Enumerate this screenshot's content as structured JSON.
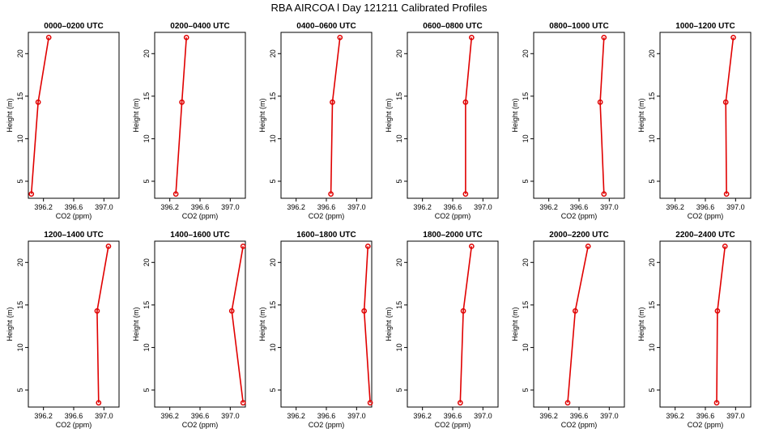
{
  "figure": {
    "title": "RBA AIRCOA l  Day 121211  Calibrated Profiles"
  },
  "style": {
    "line_color": "#e00000",
    "point_color": "#e00000",
    "axis_color": "#000000"
  },
  "chart_data": [
    {
      "type": "line",
      "title": "0000–0200 UTC",
      "xlabel": "CO2 (ppm)",
      "ylabel": "Height (m)",
      "xlim": [
        396.0,
        397.2
      ],
      "ylim": [
        3,
        22.5
      ],
      "xticks": [
        "396.2",
        "396.6",
        "397.0"
      ],
      "yticks": [
        "5",
        "10",
        "15",
        "20"
      ],
      "series": [
        {
          "x": [
            396.04,
            396.13,
            396.27
          ],
          "y": [
            3.5,
            14.3,
            21.9
          ]
        }
      ]
    },
    {
      "type": "line",
      "title": "0200–0400 UTC",
      "xlabel": "CO2 (ppm)",
      "ylabel": "Height (m)",
      "xlim": [
        396.0,
        397.2
      ],
      "ylim": [
        3,
        22.5
      ],
      "xticks": [
        "396.2",
        "396.6",
        "397.0"
      ],
      "yticks": [
        "5",
        "10",
        "15",
        "20"
      ],
      "series": [
        {
          "x": [
            396.28,
            396.36,
            396.42
          ],
          "y": [
            3.5,
            14.3,
            21.9
          ]
        }
      ]
    },
    {
      "type": "line",
      "title": "0400–0600 UTC",
      "xlabel": "CO2 (ppm)",
      "ylabel": "Height (m)",
      "xlim": [
        396.0,
        397.2
      ],
      "ylim": [
        3,
        22.5
      ],
      "xticks": [
        "396.2",
        "396.6",
        "397.0"
      ],
      "yticks": [
        "5",
        "10",
        "15",
        "20"
      ],
      "series": [
        {
          "x": [
            396.66,
            396.68,
            396.78
          ],
          "y": [
            3.5,
            14.3,
            21.9
          ]
        }
      ]
    },
    {
      "type": "line",
      "title": "0600–0800 UTC",
      "xlabel": "CO2 (ppm)",
      "ylabel": "Height (m)",
      "xlim": [
        396.0,
        397.2
      ],
      "ylim": [
        3,
        22.5
      ],
      "xticks": [
        "396.2",
        "396.6",
        "397.0"
      ],
      "yticks": [
        "5",
        "10",
        "15",
        "20"
      ],
      "series": [
        {
          "x": [
            396.77,
            396.77,
            396.85
          ],
          "y": [
            3.5,
            14.3,
            21.9
          ]
        }
      ]
    },
    {
      "type": "line",
      "title": "0800–1000 UTC",
      "xlabel": "CO2 (ppm)",
      "ylabel": "Height (m)",
      "xlim": [
        396.0,
        397.2
      ],
      "ylim": [
        3,
        22.5
      ],
      "xticks": [
        "396.2",
        "396.6",
        "397.0"
      ],
      "yticks": [
        "5",
        "10",
        "15",
        "20"
      ],
      "series": [
        {
          "x": [
            396.93,
            396.88,
            396.93
          ],
          "y": [
            3.5,
            14.3,
            21.9
          ]
        }
      ]
    },
    {
      "type": "line",
      "title": "1000–1200 UTC",
      "xlabel": "CO2 (ppm)",
      "ylabel": "Height (m)",
      "xlim": [
        396.0,
        397.2
      ],
      "ylim": [
        3,
        22.5
      ],
      "xticks": [
        "396.2",
        "396.6",
        "397.0"
      ],
      "yticks": [
        "5",
        "10",
        "15",
        "20"
      ],
      "series": [
        {
          "x": [
            396.88,
            396.87,
            396.97
          ],
          "y": [
            3.5,
            14.3,
            21.9
          ]
        }
      ]
    },
    {
      "type": "line",
      "title": "1200–1400 UTC",
      "xlabel": "CO2 (ppm)",
      "ylabel": "Height (m)",
      "xlim": [
        396.0,
        397.2
      ],
      "ylim": [
        3,
        22.5
      ],
      "xticks": [
        "396.2",
        "396.6",
        "397.0"
      ],
      "yticks": [
        "5",
        "10",
        "15",
        "20"
      ],
      "series": [
        {
          "x": [
            396.93,
            396.91,
            397.06
          ],
          "y": [
            3.5,
            14.3,
            21.9
          ]
        }
      ]
    },
    {
      "type": "line",
      "title": "1400–1600 UTC",
      "xlabel": "CO2 (ppm)",
      "ylabel": "Height (m)",
      "xlim": [
        396.0,
        397.2
      ],
      "ylim": [
        3,
        22.5
      ],
      "xticks": [
        "396.2",
        "396.6",
        "397.0"
      ],
      "yticks": [
        "5",
        "10",
        "15",
        "20"
      ],
      "series": [
        {
          "x": [
            397.17,
            397.02,
            397.17
          ],
          "y": [
            3.5,
            14.3,
            21.9
          ]
        }
      ]
    },
    {
      "type": "line",
      "title": "1600–1800 UTC",
      "xlabel": "CO2 (ppm)",
      "ylabel": "Height (m)",
      "xlim": [
        396.0,
        397.2
      ],
      "ylim": [
        3,
        22.5
      ],
      "xticks": [
        "396.2",
        "396.6",
        "397.0"
      ],
      "yticks": [
        "5",
        "10",
        "15",
        "20"
      ],
      "series": [
        {
          "x": [
            397.18,
            397.1,
            397.15
          ],
          "y": [
            3.5,
            14.3,
            21.9
          ]
        }
      ]
    },
    {
      "type": "line",
      "title": "1800–2000 UTC",
      "xlabel": "CO2 (ppm)",
      "ylabel": "Height (m)",
      "xlim": [
        396.0,
        397.2
      ],
      "ylim": [
        3,
        22.5
      ],
      "xticks": [
        "396.2",
        "396.6",
        "397.0"
      ],
      "yticks": [
        "5",
        "10",
        "15",
        "20"
      ],
      "series": [
        {
          "x": [
            396.7,
            396.74,
            396.85
          ],
          "y": [
            3.5,
            14.3,
            21.9
          ]
        }
      ]
    },
    {
      "type": "line",
      "title": "2000–2200 UTC",
      "xlabel": "CO2 (ppm)",
      "ylabel": "Height (m)",
      "xlim": [
        396.0,
        397.2
      ],
      "ylim": [
        3,
        22.5
      ],
      "xticks": [
        "396.2",
        "396.6",
        "397.0"
      ],
      "yticks": [
        "5",
        "10",
        "15",
        "20"
      ],
      "series": [
        {
          "x": [
            396.45,
            396.55,
            396.72
          ],
          "y": [
            3.5,
            14.3,
            21.9
          ]
        }
      ]
    },
    {
      "type": "line",
      "title": "2200–2400 UTC",
      "xlabel": "CO2 (ppm)",
      "ylabel": "Height (m)",
      "xlim": [
        396.0,
        397.2
      ],
      "ylim": [
        3,
        22.5
      ],
      "xticks": [
        "396.2",
        "396.6",
        "397.0"
      ],
      "yticks": [
        "5",
        "10",
        "15",
        "20"
      ],
      "series": [
        {
          "x": [
            396.75,
            396.76,
            396.86
          ],
          "y": [
            3.5,
            14.3,
            21.9
          ]
        }
      ]
    }
  ]
}
